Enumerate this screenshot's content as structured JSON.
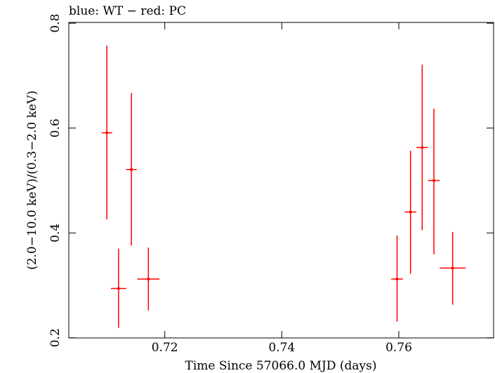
{
  "chart_data": {
    "type": "scatter",
    "title": "blue: WT − red: PC",
    "xlabel": "Time Since 57066.0 MJD (days)",
    "ylabel": "(2.0−10.0 keV)/(0.3−2.0 keV)",
    "xlim": [
      0.7036,
      0.7762
    ],
    "ylim": [
      0.1997,
      0.8015
    ],
    "xticks": [
      {
        "value": 0.72,
        "label": "0.72"
      },
      {
        "value": 0.74,
        "label": "0.74"
      },
      {
        "value": 0.76,
        "label": "0.76"
      }
    ],
    "yticks": [
      {
        "value": 0.2,
        "label": "0.2"
      },
      {
        "value": 0.4,
        "label": "0.4"
      },
      {
        "value": 0.6,
        "label": "0.6"
      },
      {
        "value": 0.8,
        "label": "0.8"
      }
    ],
    "grid": false,
    "series": [
      {
        "name": "PC",
        "color": "#ff0000",
        "points": [
          {
            "x": 0.7101,
            "xerr": 0.0009,
            "y": 0.591,
            "ylo": 0.426,
            "yhi": 0.757
          },
          {
            "x": 0.7121,
            "xerr": 0.0013,
            "y": 0.294,
            "ylo": 0.219,
            "yhi": 0.37
          },
          {
            "x": 0.7143,
            "xerr": 0.0009,
            "y": 0.521,
            "ylo": 0.376,
            "yhi": 0.667
          },
          {
            "x": 0.7172,
            "xerr": 0.0019,
            "y": 0.312,
            "ylo": 0.252,
            "yhi": 0.372
          },
          {
            "x": 0.7597,
            "xerr": 0.001,
            "y": 0.312,
            "ylo": 0.231,
            "yhi": 0.395
          },
          {
            "x": 0.762,
            "xerr": 0.001,
            "y": 0.44,
            "ylo": 0.322,
            "yhi": 0.557
          },
          {
            "x": 0.764,
            "xerr": 0.001,
            "y": 0.563,
            "ylo": 0.405,
            "yhi": 0.721
          },
          {
            "x": 0.766,
            "xerr": 0.001,
            "y": 0.5,
            "ylo": 0.359,
            "yhi": 0.637
          },
          {
            "x": 0.7692,
            "xerr": 0.0022,
            "y": 0.333,
            "ylo": 0.263,
            "yhi": 0.402
          }
        ]
      }
    ]
  }
}
